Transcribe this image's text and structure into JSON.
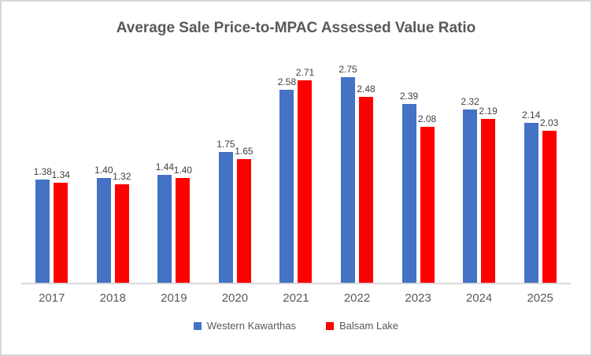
{
  "chart_data": {
    "type": "bar",
    "title": "Average Sale Price-to-MPAC Assessed Value Ratio",
    "categories": [
      "2017",
      "2018",
      "2019",
      "2020",
      "2021",
      "2022",
      "2023",
      "2024",
      "2025"
    ],
    "series": [
      {
        "name": "Western Kawarthas",
        "color": "#4472C4",
        "values": [
          1.38,
          1.4,
          1.44,
          1.75,
          2.58,
          2.75,
          2.39,
          2.32,
          2.14
        ]
      },
      {
        "name": "Balsam Lake",
        "color": "#FF0000",
        "values": [
          1.34,
          1.32,
          1.4,
          1.65,
          2.71,
          2.48,
          2.08,
          2.19,
          2.03
        ]
      }
    ],
    "xlabel": "",
    "ylabel": "",
    "ylim": [
      0,
      3
    ],
    "grid": false,
    "data_labels": true,
    "data_label_format": "0.00",
    "legend_position": "bottom",
    "axis_line_color": "#D9D9D9",
    "text_color": "#595959"
  }
}
